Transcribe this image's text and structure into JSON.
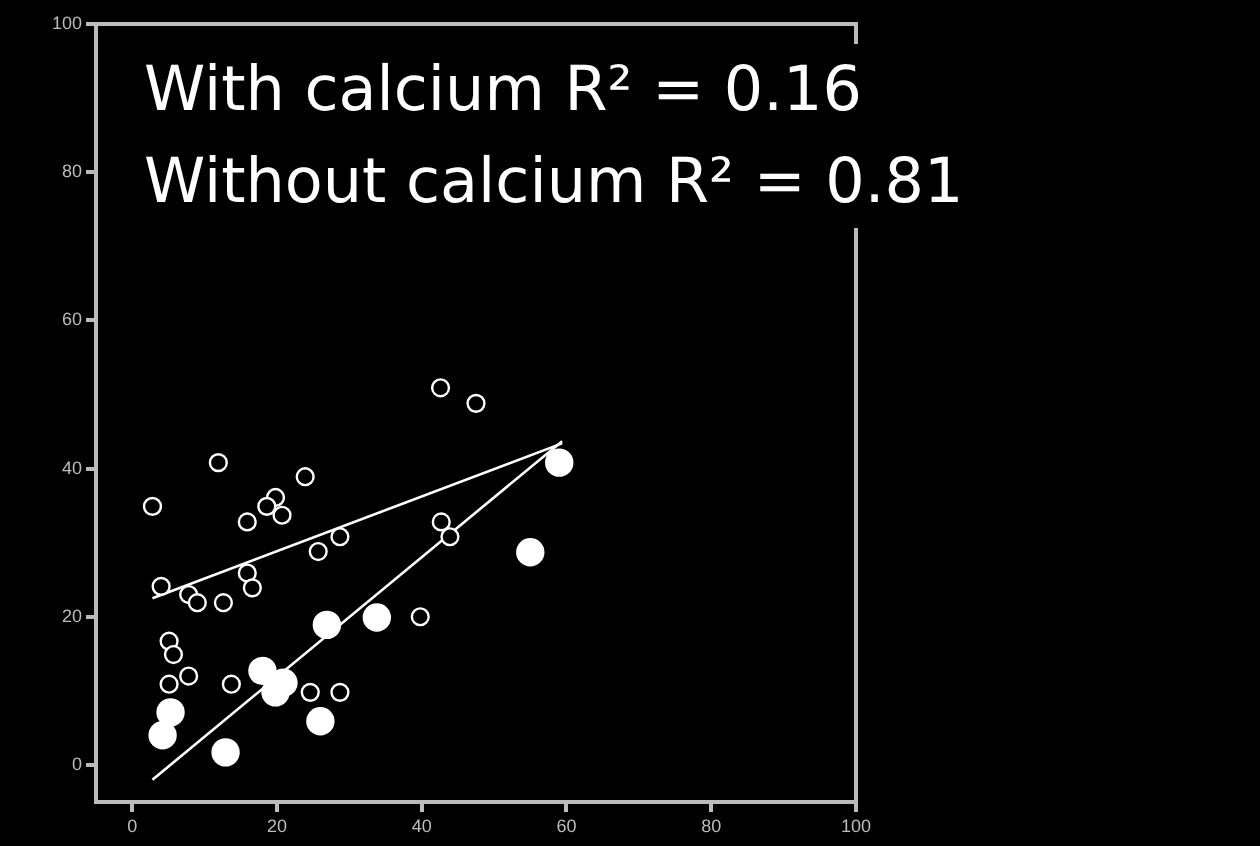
{
  "chart_data": {
    "type": "scatter",
    "annotations": [
      "With calcium R² = 0.16",
      "Without calcium R² = 0.81"
    ],
    "xlim": [
      -5,
      100
    ],
    "ylim": [
      -5,
      100
    ],
    "xticks": [
      0,
      20,
      40,
      60,
      80,
      100
    ],
    "yticks": [
      0,
      20,
      40,
      60,
      80,
      100
    ],
    "grid": false,
    "legend": false,
    "marker": "circle",
    "series": [
      {
        "color": "#ffffff",
        "x": [
          2.8,
          42.6,
          47.5,
          11.9,
          23.9,
          19.8,
          18.6,
          20.7,
          15.9,
          28.7,
          25.7,
          42.7,
          43.9,
          4.0,
          15.9,
          16.6,
          7.8,
          9.0,
          12.6,
          5.1,
          5.7,
          5.1,
          7.8,
          13.7,
          39.8,
          24.6,
          28.7
        ],
        "values": [
          34.9,
          50.9,
          48.8,
          40.8,
          38.9,
          36.1,
          34.9,
          33.7,
          32.8,
          30.8,
          28.8,
          32.8,
          30.8,
          24.1,
          25.9,
          23.9,
          23.0,
          21.9,
          21.9,
          16.7,
          14.9,
          10.9,
          12.0,
          10.9,
          20.0,
          9.8,
          9.8
        ]
      },
      {
        "color": "#ffffff",
        "x": [
          59.0,
          55.0,
          26.9,
          33.8,
          18.0,
          20.9,
          19.8,
          26.0,
          5.3,
          4.2,
          12.9
        ],
        "values": [
          40.8,
          28.7,
          18.9,
          19.9,
          12.7,
          11.1,
          9.8,
          5.9,
          7.1,
          4.0,
          1.7
        ]
      },
      {
        "type": "line",
        "marker": "none",
        "color": "#ffffff",
        "x": [
          2.8,
          59.4
        ],
        "values": [
          22.5,
          43.4
        ]
      },
      {
        "type": "line",
        "marker": "none",
        "color": "#ffffff",
        "x": [
          2.8,
          59.4
        ],
        "values": [
          -2.0,
          43.7
        ]
      }
    ]
  }
}
